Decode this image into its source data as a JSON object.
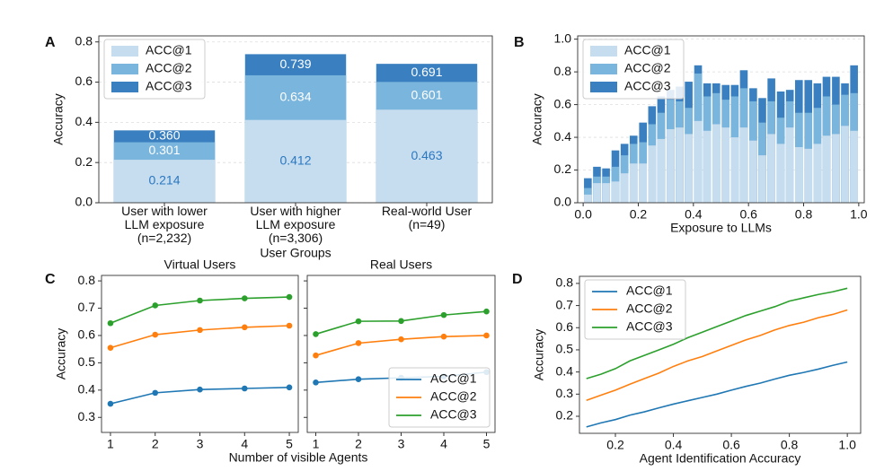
{
  "chart_data": [
    {
      "type": "bar",
      "panel_label": "A",
      "bar_mode": "overlay",
      "xlabel": "User Groups",
      "ylabel": "Accuracy",
      "categories": [
        "User with lower\nLLM exposure\n(n=2,232)",
        "User with higher\nLLM exposure\n(n=3,306)",
        "Real-world User\n(n=49)"
      ],
      "series": [
        {
          "name": "ACC@1",
          "color": "#c6dcef",
          "values": [
            0.214,
            0.412,
            0.463
          ],
          "value_labels": [
            "0.214",
            "0.412",
            "0.463"
          ]
        },
        {
          "name": "ACC@2",
          "color": "#79b5dc",
          "values": [
            0.301,
            0.634,
            0.601
          ],
          "value_labels": [
            "0.301",
            "0.634",
            "0.601"
          ]
        },
        {
          "name": "ACC@3",
          "color": "#3a80c0",
          "values": [
            0.36,
            0.739,
            0.691
          ],
          "value_labels": [
            "0.360",
            "0.739",
            "0.691"
          ]
        }
      ],
      "ylim": [
        0,
        0.83
      ],
      "yticks": [
        {
          "value": 0,
          "label": "0.0"
        },
        0.2,
        0.4,
        0.6,
        0.8
      ],
      "grid": true,
      "legend": "upper left"
    },
    {
      "type": "bar",
      "panel_label": "B",
      "bar_mode": "overlay",
      "xlabel": "Exposure to LLMs",
      "ylabel": "Accuracy",
      "x": [
        0.017,
        0.05,
        0.083,
        0.117,
        0.15,
        0.183,
        0.217,
        0.25,
        0.283,
        0.317,
        0.35,
        0.383,
        0.417,
        0.45,
        0.483,
        0.517,
        0.55,
        0.583,
        0.617,
        0.65,
        0.683,
        0.717,
        0.75,
        0.783,
        0.817,
        0.85,
        0.883,
        0.917,
        0.95,
        0.983
      ],
      "series": [
        {
          "name": "ACC@1",
          "color": "#c6dcef",
          "values": [
            0.05,
            0.12,
            0.12,
            0.13,
            0.18,
            0.24,
            0.24,
            0.35,
            0.39,
            0.45,
            0.46,
            0.42,
            0.5,
            0.44,
            0.48,
            0.46,
            0.4,
            0.46,
            0.38,
            0.29,
            0.42,
            0.36,
            0.46,
            0.34,
            0.33,
            0.36,
            0.41,
            0.42,
            0.47,
            0.44
          ]
        },
        {
          "name": "ACC@2",
          "color": "#79b5dc",
          "values": [
            0.09,
            0.16,
            0.16,
            0.22,
            0.29,
            0.36,
            0.37,
            0.48,
            0.55,
            0.63,
            0.62,
            0.58,
            0.79,
            0.65,
            0.67,
            0.63,
            0.65,
            0.7,
            0.62,
            0.49,
            0.62,
            0.52,
            0.62,
            0.55,
            0.55,
            0.58,
            0.65,
            0.6,
            0.66,
            0.67
          ]
        },
        {
          "name": "ACC@3",
          "color": "#3a80c0",
          "values": [
            0.15,
            0.22,
            0.21,
            0.32,
            0.36,
            0.41,
            0.49,
            0.59,
            0.65,
            0.69,
            0.71,
            0.74,
            0.84,
            0.73,
            0.73,
            0.72,
            0.72,
            0.81,
            0.7,
            0.64,
            0.76,
            0.68,
            0.69,
            0.75,
            0.75,
            0.73,
            0.77,
            0.77,
            0.73,
            0.84
          ]
        }
      ],
      "xlim": [
        -0.02,
        1.02
      ],
      "xticks": [
        {
          "value": 0,
          "label": "0.0"
        },
        0.2,
        0.4,
        0.6,
        0.8,
        {
          "value": 1,
          "label": "1.0"
        }
      ],
      "ylim": [
        0,
        1.02
      ],
      "yticks": [
        {
          "value": 0,
          "label": "0.0"
        },
        0.2,
        0.4,
        0.6,
        0.8,
        {
          "value": 1,
          "label": "1.0"
        }
      ],
      "grid": true,
      "legend": "upper left"
    },
    {
      "type": "line",
      "panel_label": "C",
      "title": "Virtual Users",
      "xlabel": "Number of visible Agents",
      "ylabel": "Accuracy",
      "markers": true,
      "x": [
        1,
        2,
        3,
        4,
        5
      ],
      "series": [
        {
          "name": "ACC@1",
          "color": "#1f77b4",
          "values": [
            0.35,
            0.39,
            0.402,
            0.406,
            0.41
          ]
        },
        {
          "name": "ACC@2",
          "color": "#ff7f0e",
          "values": [
            0.555,
            0.603,
            0.62,
            0.63,
            0.636
          ]
        },
        {
          "name": "ACC@3",
          "color": "#2ca02c",
          "values": [
            0.645,
            0.71,
            0.728,
            0.736,
            0.741
          ]
        }
      ],
      "xlim": [
        0.8,
        5.2
      ],
      "xticks": [
        1,
        2,
        3,
        4,
        5
      ],
      "ylim": [
        0.245,
        0.82
      ],
      "yticks": [
        0.3,
        0.4,
        0.5,
        0.6,
        0.7,
        0.8
      ]
    },
    {
      "type": "line",
      "title": "Real Users",
      "markers": true,
      "ytick_labels": false,
      "x": [
        1,
        2,
        3,
        4,
        5
      ],
      "series": [
        {
          "name": "ACC@1",
          "color": "#1f77b4",
          "values": [
            0.428,
            0.44,
            0.445,
            0.45,
            0.466
          ]
        },
        {
          "name": "ACC@2",
          "color": "#ff7f0e",
          "values": [
            0.527,
            0.572,
            0.586,
            0.596,
            0.6
          ]
        },
        {
          "name": "ACC@3",
          "color": "#2ca02c",
          "values": [
            0.605,
            0.652,
            0.653,
            0.675,
            0.688
          ]
        }
      ],
      "xlim": [
        0.8,
        5.2
      ],
      "xticks": [
        1,
        2,
        3,
        4,
        5
      ],
      "ylim": [
        0.245,
        0.82
      ],
      "yticks": [
        0.3,
        0.4,
        0.5,
        0.6,
        0.7,
        0.8
      ],
      "legend": "lower right"
    },
    {
      "type": "line",
      "panel_label": "D",
      "xlabel": "Agent Identification Accuracy",
      "ylabel": "Accuracy",
      "x": [
        0.1,
        0.15,
        0.2,
        0.25,
        0.3,
        0.35,
        0.4,
        0.45,
        0.5,
        0.55,
        0.6,
        0.65,
        0.7,
        0.75,
        0.8,
        0.85,
        0.9,
        0.95,
        1
      ],
      "series": [
        {
          "name": "ACC@1",
          "color": "#1f77b4",
          "values": [
            0.152,
            0.17,
            0.185,
            0.205,
            0.22,
            0.238,
            0.255,
            0.27,
            0.285,
            0.3,
            0.318,
            0.335,
            0.35,
            0.368,
            0.385,
            0.398,
            0.413,
            0.43,
            0.445
          ]
        },
        {
          "name": "ACC@2",
          "color": "#ff7f0e",
          "values": [
            0.272,
            0.295,
            0.318,
            0.345,
            0.37,
            0.395,
            0.425,
            0.45,
            0.47,
            0.495,
            0.52,
            0.545,
            0.565,
            0.59,
            0.61,
            0.625,
            0.645,
            0.66,
            0.68
          ]
        },
        {
          "name": "ACC@3",
          "color": "#2ca02c",
          "values": [
            0.37,
            0.39,
            0.415,
            0.45,
            0.475,
            0.5,
            0.525,
            0.555,
            0.58,
            0.605,
            0.63,
            0.655,
            0.675,
            0.695,
            0.72,
            0.735,
            0.75,
            0.762,
            0.778
          ]
        }
      ],
      "xlim": [
        0.076,
        1.046
      ],
      "xticks": [
        0.2,
        0.4,
        0.6,
        0.8,
        {
          "value": 1,
          "label": "1.0"
        }
      ],
      "ylim": [
        0.123,
        0.832
      ],
      "yticks": [
        0.2,
        0.3,
        0.4,
        0.5,
        0.6,
        0.7,
        0.8
      ],
      "legend": "upper left"
    }
  ]
}
